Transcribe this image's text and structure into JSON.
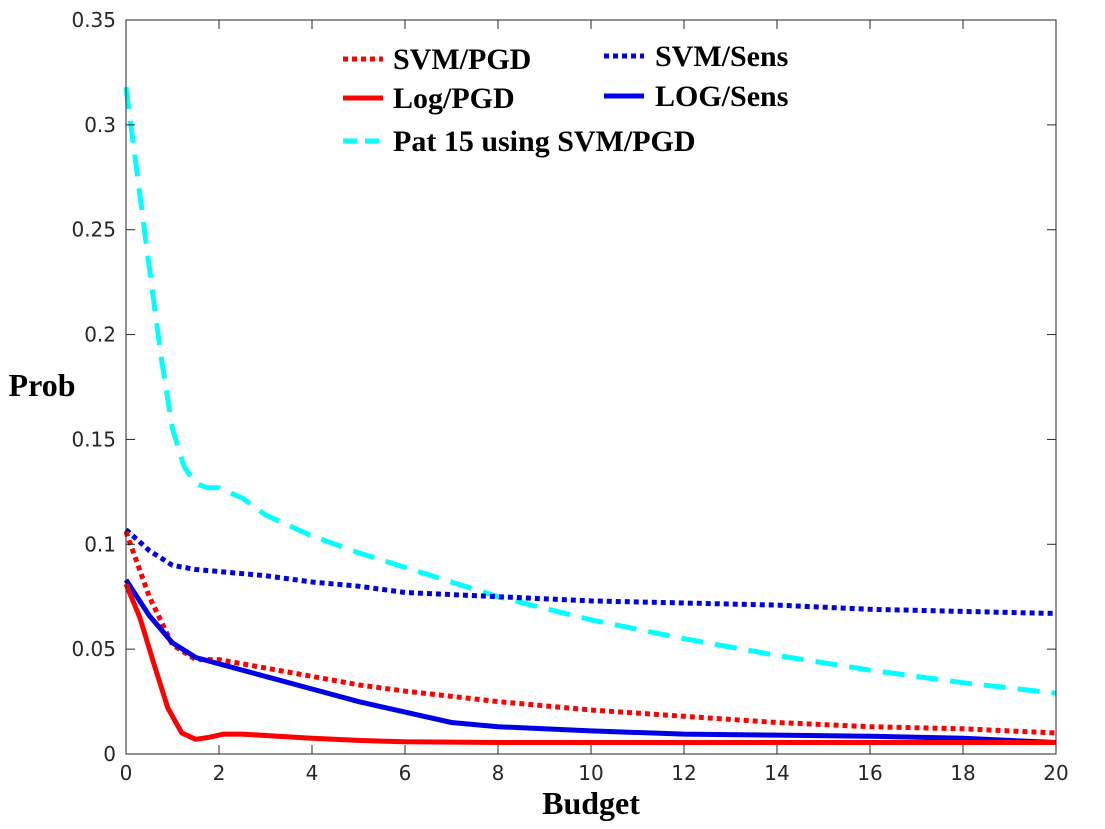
{
  "chart_data": {
    "type": "line",
    "title": "",
    "xlabel": "Budget",
    "ylabel": "Prob",
    "xlim": [
      0,
      20
    ],
    "ylim": [
      0,
      0.35
    ],
    "xticks": [
      0,
      2,
      4,
      6,
      8,
      10,
      12,
      14,
      16,
      18,
      20
    ],
    "yticks": [
      0,
      0.05,
      0.1,
      0.15,
      0.2,
      0.25,
      0.3,
      0.35
    ],
    "xtick_labels": [
      "0",
      "2",
      "4",
      "6",
      "8",
      "10",
      "12",
      "14",
      "16",
      "18",
      "20"
    ],
    "ytick_labels": [
      "0",
      "0.05",
      "0.1",
      "0.15",
      "0.2",
      "0.25",
      "0.3",
      "0.35"
    ],
    "grid": false,
    "legend_location": "top-center",
    "series": [
      {
        "name": "SVM/PGD",
        "color": "#ff0000",
        "style": "dotted",
        "x": [
          0,
          0.5,
          1,
          1.5,
          2,
          3,
          4,
          5,
          6,
          8,
          10,
          12,
          14,
          16,
          18,
          20
        ],
        "y": [
          0.106,
          0.075,
          0.052,
          0.045,
          0.045,
          0.041,
          0.037,
          0.033,
          0.03,
          0.025,
          0.021,
          0.018,
          0.015,
          0.013,
          0.012,
          0.01
        ]
      },
      {
        "name": "SVM/Sens",
        "color": "#0000e6",
        "style": "dotted",
        "x": [
          0,
          0.5,
          1,
          1.5,
          2,
          3,
          4,
          5,
          6,
          8,
          10,
          12,
          14,
          16,
          18,
          20
        ],
        "y": [
          0.107,
          0.097,
          0.09,
          0.088,
          0.087,
          0.085,
          0.082,
          0.08,
          0.077,
          0.075,
          0.073,
          0.072,
          0.071,
          0.069,
          0.068,
          0.067
        ]
      },
      {
        "name": "Log/PGD",
        "color": "#ff0000",
        "style": "solid",
        "x": [
          0,
          0.3,
          0.6,
          0.9,
          1.2,
          1.5,
          1.8,
          2.1,
          2.5,
          3,
          4,
          5,
          6,
          8,
          10,
          12,
          14,
          16,
          18,
          20
        ],
        "y": [
          0.081,
          0.065,
          0.043,
          0.022,
          0.01,
          0.007,
          0.008,
          0.0095,
          0.0095,
          0.0088,
          0.0075,
          0.0065,
          0.0058,
          0.0055,
          0.0055,
          0.0055,
          0.0055,
          0.0055,
          0.0055,
          0.0055
        ]
      },
      {
        "name": "LOG/Sens",
        "color": "#0000e6",
        "style": "solid",
        "x": [
          0,
          0.5,
          1,
          1.5,
          2,
          3,
          4,
          5,
          6,
          7,
          8,
          10,
          12,
          14,
          16,
          18,
          20
        ],
        "y": [
          0.083,
          0.066,
          0.053,
          0.046,
          0.043,
          0.037,
          0.031,
          0.025,
          0.02,
          0.015,
          0.013,
          0.011,
          0.0095,
          0.009,
          0.0085,
          0.0075,
          0.0055
        ]
      },
      {
        "name": "Pat 15 using SVM/PGD",
        "color": "#00ffff",
        "style": "dashed",
        "x": [
          0,
          0.25,
          0.5,
          0.75,
          1,
          1.25,
          1.5,
          1.75,
          2,
          2.5,
          3,
          4,
          5,
          6,
          7,
          8,
          10,
          12,
          14,
          16,
          18,
          20
        ],
        "y": [
          0.318,
          0.275,
          0.232,
          0.19,
          0.155,
          0.137,
          0.129,
          0.127,
          0.127,
          0.122,
          0.114,
          0.104,
          0.096,
          0.089,
          0.082,
          0.075,
          0.064,
          0.055,
          0.047,
          0.04,
          0.034,
          0.029
        ]
      }
    ]
  }
}
